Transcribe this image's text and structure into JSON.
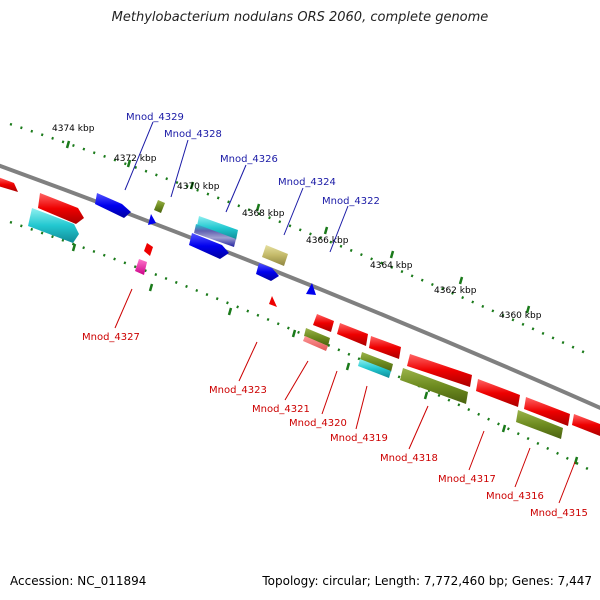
{
  "title": "Methylobacterium nodulans ORS 2060, complete genome",
  "footer": {
    "accession": "Accession: NC_011894",
    "summary": "Topology: circular; Length: 7,772,460 bp; Genes: 7,447"
  },
  "colors": {
    "upper_label": "#1a1aa6",
    "lower_label": "#cc0000",
    "backbone": "#808080",
    "tick": "#1a7a1a"
  },
  "kbp_labels": [
    "4374 kbp",
    "4372 kbp",
    "4370 kbp",
    "4368 kbp",
    "4366 kbp",
    "4364 kbp",
    "4362 kbp",
    "4360 kbp"
  ],
  "upper_genes": [
    "Mnod_4329",
    "Mnod_4328",
    "Mnod_4326",
    "Mnod_4324",
    "Mnod_4322"
  ],
  "lower_genes": [
    "Mnod_4327",
    "Mnod_4323",
    "Mnod_4321",
    "Mnod_4320",
    "Mnod_4319",
    "Mnod_4318",
    "Mnod_4317",
    "Mnod_4316",
    "Mnod_4315"
  ]
}
